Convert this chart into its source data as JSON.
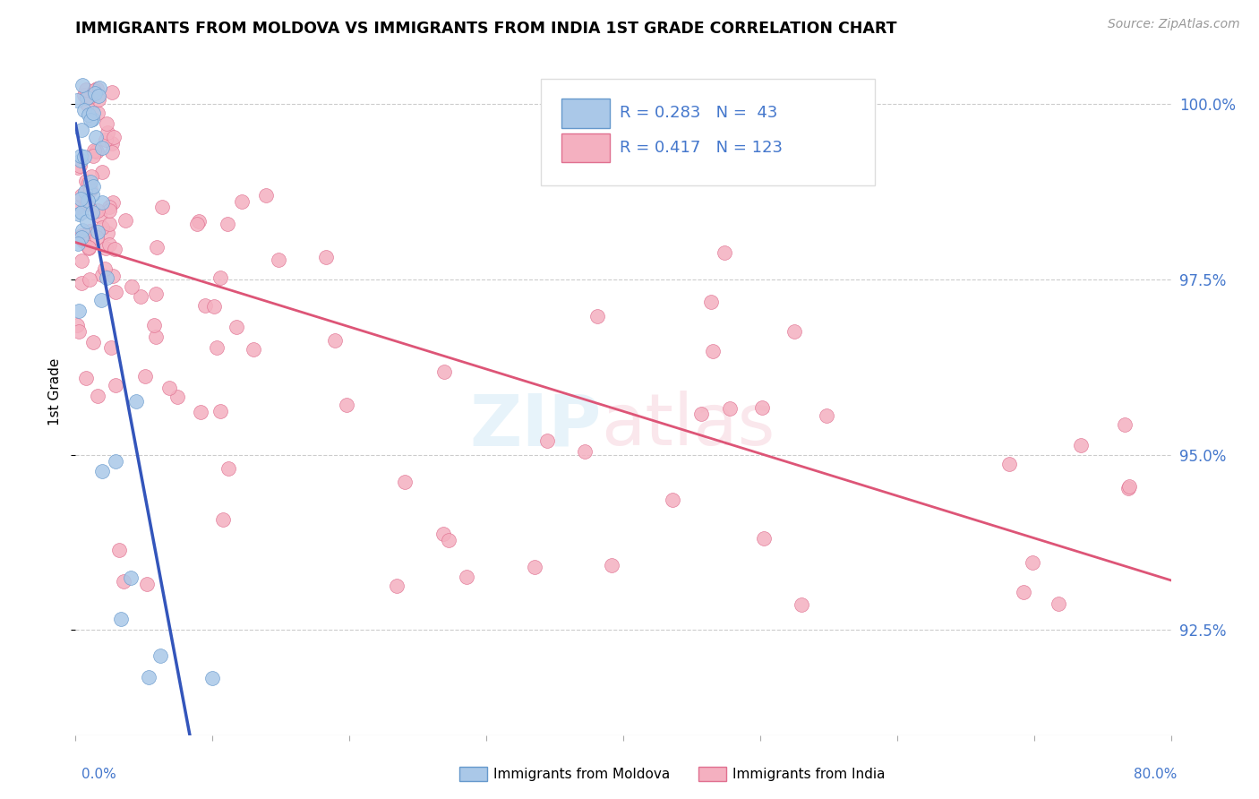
{
  "title": "IMMIGRANTS FROM MOLDOVA VS IMMIGRANTS FROM INDIA 1ST GRADE CORRELATION CHART",
  "source": "Source: ZipAtlas.com",
  "ylabel": "1st Grade",
  "xmin": 0.0,
  "xmax": 80.0,
  "ymin": 91.0,
  "ymax": 100.8,
  "yticks": [
    92.5,
    95.0,
    97.5,
    100.0
  ],
  "ytick_labels": [
    "92.5%",
    "95.0%",
    "97.5%",
    "100.0%"
  ],
  "grid_color": "#cccccc",
  "background": "#ffffff",
  "moldova_color": "#aac8e8",
  "moldova_edge": "#6699cc",
  "india_color": "#f4b0c0",
  "india_edge": "#e07090",
  "moldova_R": 0.283,
  "moldova_N": 43,
  "india_R": 0.417,
  "india_N": 123,
  "moldova_trend_color": "#3355bb",
  "india_trend_color": "#dd5577",
  "label_color": "#4477cc"
}
